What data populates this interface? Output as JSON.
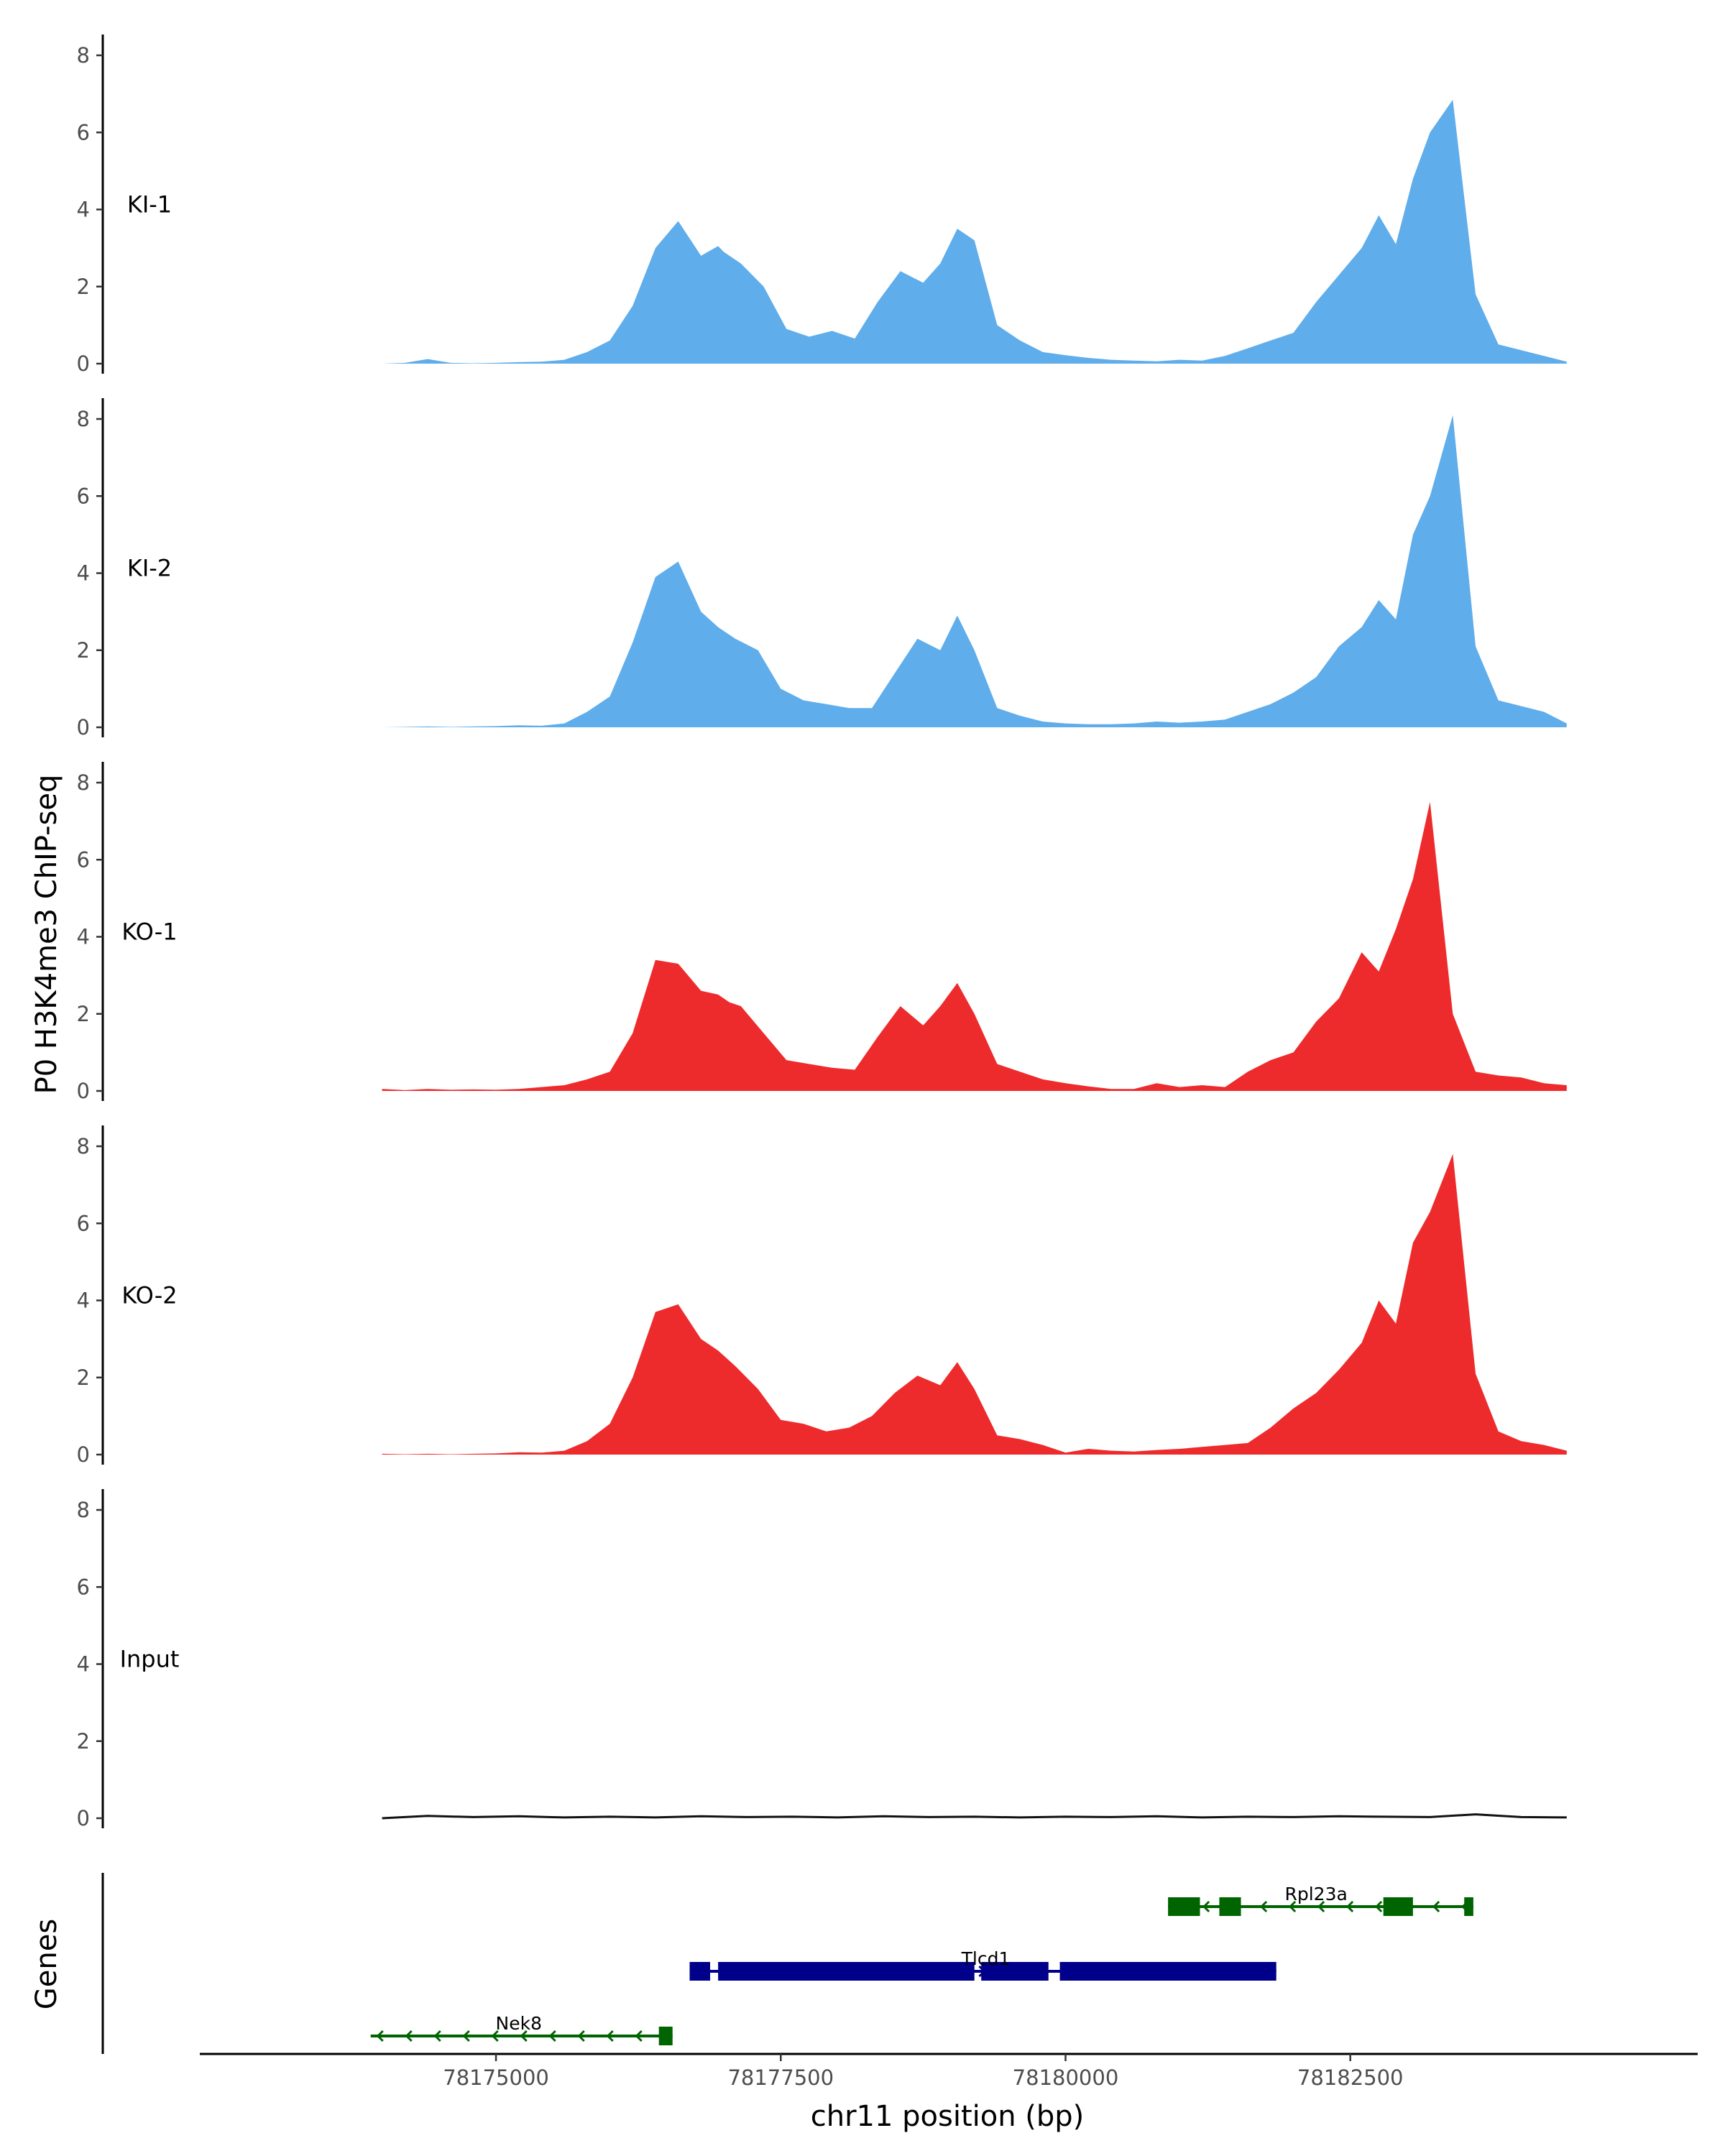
{
  "chart_data": {
    "type": "area",
    "ylabel": "P0 H3K4me3 ChIP-seq",
    "xlabel": "chr11 position (bp)",
    "genes_label": "Genes",
    "xlim": [
      78172400,
      78185600
    ],
    "ylim": [
      0,
      8.6
    ],
    "y_ticks": [
      0,
      2,
      4,
      6,
      8
    ],
    "x_ticks": [
      78175000,
      78177500,
      78180000,
      78182500
    ],
    "colors": {
      "KI": "#5fadeb",
      "KO": "#ee2b2c",
      "Input": "#111111",
      "gene_minus": "#006400",
      "gene_plus": "#00008b"
    },
    "tracks": [
      {
        "name": "KI-1",
        "group": "KI",
        "x": [
          78174000,
          78174200,
          78174400,
          78174600,
          78174800,
          78175000,
          78175200,
          78175400,
          78175600,
          78175800,
          78176000,
          78176200,
          78176400,
          78176600,
          78176800,
          78176950,
          78177000,
          78177150,
          78177350,
          78177550,
          78177750,
          78177950,
          78178150,
          78178350,
          78178550,
          78178750,
          78178900,
          78179050,
          78179200,
          78179400,
          78179600,
          78179800,
          78180000,
          78180200,
          78180400,
          78180600,
          78180800,
          78181000,
          78181200,
          78181400,
          78181600,
          78181800,
          78182000,
          78182200,
          78182400,
          78182600,
          78182750,
          78182900,
          78183050,
          78183200,
          78183400,
          78183600,
          78183800,
          78184000,
          78184200,
          78184400
        ],
        "y": [
          0,
          0.02,
          0.12,
          0.02,
          0.01,
          0.02,
          0.04,
          0.05,
          0.1,
          0.3,
          0.6,
          1.5,
          3.0,
          3.7,
          2.8,
          3.05,
          2.9,
          2.6,
          2.0,
          0.9,
          0.7,
          0.85,
          0.65,
          1.6,
          2.4,
          2.1,
          2.6,
          3.5,
          3.2,
          1.0,
          0.6,
          0.3,
          0.22,
          0.15,
          0.1,
          0.08,
          0.06,
          0.1,
          0.08,
          0.2,
          0.4,
          0.6,
          0.8,
          1.6,
          2.3,
          3.0,
          3.85,
          3.1,
          4.8,
          6.0,
          6.85,
          1.8,
          0.5,
          0.35,
          0.2,
          0.05
        ]
      },
      {
        "name": "KI-2",
        "group": "KI",
        "x": [
          78174000,
          78174200,
          78174400,
          78174600,
          78174800,
          78175000,
          78175200,
          78175400,
          78175600,
          78175800,
          78176000,
          78176200,
          78176400,
          78176600,
          78176800,
          78176950,
          78177100,
          78177300,
          78177500,
          78177700,
          78177900,
          78178100,
          78178300,
          78178500,
          78178700,
          78178900,
          78179050,
          78179200,
          78179400,
          78179600,
          78179800,
          78180000,
          78180200,
          78180400,
          78180600,
          78180800,
          78181000,
          78181200,
          78181400,
          78181600,
          78181800,
          78182000,
          78182200,
          78182400,
          78182600,
          78182750,
          78182900,
          78183050,
          78183200,
          78183400,
          78183600,
          78183800,
          78184000,
          78184200,
          78184400
        ],
        "y": [
          0,
          0.01,
          0.02,
          0.01,
          0.02,
          0.03,
          0.05,
          0.04,
          0.1,
          0.4,
          0.8,
          2.2,
          3.9,
          4.3,
          3.0,
          2.6,
          2.3,
          2.0,
          1.0,
          0.7,
          0.6,
          0.5,
          0.5,
          1.4,
          2.3,
          2.0,
          2.9,
          2.0,
          0.5,
          0.3,
          0.15,
          0.1,
          0.08,
          0.08,
          0.1,
          0.15,
          0.12,
          0.15,
          0.2,
          0.4,
          0.6,
          0.9,
          1.3,
          2.1,
          2.6,
          3.3,
          2.8,
          5.0,
          6.0,
          8.1,
          2.1,
          0.7,
          0.55,
          0.4,
          0.1
        ]
      },
      {
        "name": "KO-1",
        "group": "KO",
        "x": [
          78174000,
          78174200,
          78174400,
          78174600,
          78174800,
          78175000,
          78175200,
          78175400,
          78175600,
          78175800,
          78176000,
          78176200,
          78176400,
          78176600,
          78176800,
          78176950,
          78177050,
          78177150,
          78177350,
          78177550,
          78177750,
          78177950,
          78178150,
          78178350,
          78178550,
          78178750,
          78178900,
          78179050,
          78179200,
          78179400,
          78179600,
          78179800,
          78180000,
          78180200,
          78180400,
          78180600,
          78180800,
          78181000,
          78181200,
          78181400,
          78181600,
          78181800,
          78182000,
          78182200,
          78182400,
          78182600,
          78182750,
          78182900,
          78183050,
          78183200,
          78183400,
          78183600,
          78183800,
          78184000,
          78184200,
          78184400
        ],
        "y": [
          0.05,
          0.02,
          0.05,
          0.03,
          0.04,
          0.03,
          0.05,
          0.1,
          0.15,
          0.3,
          0.5,
          1.5,
          3.4,
          3.3,
          2.6,
          2.5,
          2.3,
          2.2,
          1.5,
          0.8,
          0.7,
          0.6,
          0.55,
          1.4,
          2.2,
          1.7,
          2.2,
          2.8,
          2.0,
          0.7,
          0.5,
          0.3,
          0.2,
          0.12,
          0.05,
          0.05,
          0.2,
          0.1,
          0.15,
          0.1,
          0.5,
          0.8,
          1.0,
          1.8,
          2.4,
          3.6,
          3.1,
          4.2,
          5.5,
          7.5,
          2.0,
          0.5,
          0.4,
          0.35,
          0.2,
          0.15
        ]
      },
      {
        "name": "KO-2",
        "group": "KO",
        "x": [
          78174000,
          78174200,
          78174400,
          78174600,
          78174800,
          78175000,
          78175200,
          78175400,
          78175600,
          78175800,
          78176000,
          78176200,
          78176400,
          78176600,
          78176800,
          78176950,
          78177100,
          78177300,
          78177500,
          78177700,
          78177900,
          78178100,
          78178300,
          78178500,
          78178700,
          78178900,
          78179050,
          78179200,
          78179400,
          78179600,
          78179800,
          78180000,
          78180200,
          78180400,
          78180600,
          78180800,
          78181000,
          78181200,
          78181400,
          78181600,
          78181800,
          78182000,
          78182200,
          78182400,
          78182600,
          78182750,
          78182900,
          78183050,
          78183200,
          78183400,
          78183600,
          78183800,
          78184000,
          78184200,
          78184400
        ],
        "y": [
          0.02,
          0.01,
          0.02,
          0.01,
          0.02,
          0.03,
          0.06,
          0.05,
          0.1,
          0.35,
          0.8,
          2.0,
          3.7,
          3.9,
          3.0,
          2.7,
          2.3,
          1.7,
          0.9,
          0.8,
          0.6,
          0.7,
          1.0,
          1.6,
          2.05,
          1.8,
          2.4,
          1.7,
          0.5,
          0.4,
          0.25,
          0.05,
          0.15,
          0.1,
          0.08,
          0.12,
          0.15,
          0.2,
          0.25,
          0.3,
          0.7,
          1.2,
          1.6,
          2.2,
          2.9,
          4.0,
          3.4,
          5.5,
          6.3,
          7.8,
          2.1,
          0.6,
          0.35,
          0.25,
          0.1
        ]
      },
      {
        "name": "Input",
        "group": "Input",
        "x": [
          78174000,
          78174400,
          78174800,
          78175200,
          78175600,
          78176000,
          78176400,
          78176800,
          78177200,
          78177600,
          78178000,
          78178400,
          78178800,
          78179200,
          78179600,
          78180000,
          78180400,
          78180800,
          78181200,
          78181600,
          78182000,
          78182400,
          78182800,
          78183200,
          78183600,
          78184000,
          78184400
        ],
        "y": [
          0,
          0.06,
          0.03,
          0.05,
          0.02,
          0.04,
          0.02,
          0.05,
          0.03,
          0.04,
          0.02,
          0.05,
          0.03,
          0.04,
          0.02,
          0.04,
          0.03,
          0.05,
          0.02,
          0.04,
          0.03,
          0.05,
          0.04,
          0.03,
          0.1,
          0.03,
          0.02
        ]
      }
    ],
    "genes": [
      {
        "name": "Rpl23a",
        "strand": "-",
        "color": "gene_minus",
        "row": 0,
        "start": 78180900,
        "end": 78183580,
        "exons": [
          [
            78180900,
            78181180
          ],
          [
            78181350,
            78181540
          ],
          [
            78182790,
            78183050
          ],
          [
            78183500,
            78183580
          ]
        ],
        "label_x": 78182200
      },
      {
        "name": "Tlcd1",
        "strand": "+",
        "color": "gene_plus",
        "row": 1,
        "start": 78176700,
        "end": 78181850,
        "exons": [
          [
            78176700,
            78176880
          ],
          [
            78176950,
            78179200
          ],
          [
            78179260,
            78179850
          ],
          [
            78179950,
            78181850
          ]
        ],
        "label_x": 78179300
      },
      {
        "name": "Nek8",
        "strand": "-",
        "color": "gene_minus",
        "row": 2,
        "start": 78173900,
        "end": 78176550,
        "exons": [
          [
            78176430,
            78176550
          ]
        ],
        "label_x": 78175200
      }
    ]
  }
}
